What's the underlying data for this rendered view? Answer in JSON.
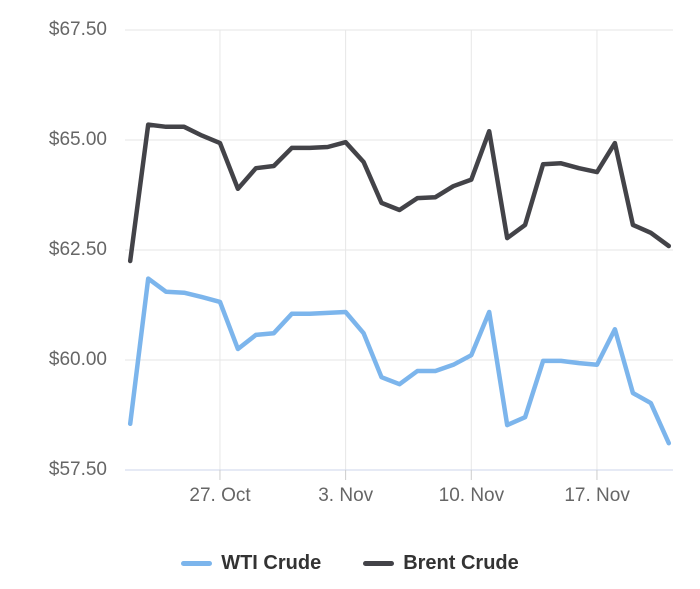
{
  "chart_data": {
    "type": "line",
    "title": "",
    "xlabel": "",
    "ylabel": "",
    "ylim": [
      57.5,
      67.5
    ],
    "grid": true,
    "legend_position": "bottom",
    "y_ticks": [
      "$67.50",
      "$65.00",
      "$62.50",
      "$60.00",
      "$57.50"
    ],
    "y_tick_values": [
      67.5,
      65.0,
      62.5,
      60.0,
      57.5
    ],
    "x_ticks": [
      "27. Oct",
      "3. Nov",
      "10. Nov",
      "17. Nov"
    ],
    "x_tick_indices": [
      5,
      12,
      19,
      26
    ],
    "x": [
      "Oct 22",
      "Oct 23",
      "Oct 24",
      "Oct 25",
      "Oct 26",
      "Oct 27",
      "Oct 28",
      "Oct 29",
      "Oct 30",
      "Oct 31",
      "Nov 1",
      "Nov 2",
      "Nov 3",
      "Nov 4",
      "Nov 5",
      "Nov 6",
      "Nov 7",
      "Nov 8",
      "Nov 9",
      "Nov 10",
      "Nov 11",
      "Nov 12",
      "Nov 13",
      "Nov 14",
      "Nov 15",
      "Nov 16",
      "Nov 17",
      "Nov 18",
      "Nov 19",
      "Nov 20",
      "Nov 21"
    ],
    "series": [
      {
        "name": "WTI Crude",
        "color": "#7cb5ec",
        "values": [
          58.55,
          61.85,
          61.55,
          61.53,
          61.43,
          61.32,
          60.25,
          60.57,
          60.61,
          61.05,
          61.05,
          61.07,
          61.09,
          60.61,
          59.61,
          59.45,
          59.75,
          59.75,
          59.89,
          60.11,
          61.09,
          58.52,
          58.7,
          59.98,
          59.98,
          59.93,
          59.89,
          60.7,
          59.25,
          59.02,
          58.11
        ]
      },
      {
        "name": "Brent Crude",
        "color": "#434348",
        "values": [
          62.25,
          65.35,
          65.3,
          65.3,
          65.1,
          64.93,
          63.89,
          64.36,
          64.41,
          64.82,
          64.82,
          64.84,
          64.95,
          64.5,
          63.57,
          63.41,
          63.68,
          63.7,
          63.95,
          64.1,
          65.2,
          62.77,
          63.07,
          64.45,
          64.47,
          64.36,
          64.27,
          64.93,
          63.07,
          62.89,
          62.59
        ]
      }
    ]
  },
  "legend": {
    "items": [
      {
        "label": "WTI Crude",
        "color": "#7cb5ec"
      },
      {
        "label": "Brent Crude",
        "color": "#434348"
      }
    ]
  },
  "colors": {
    "background": "#ffffff",
    "gridline": "#e6e6e6",
    "axis_line": "#ccd6eb",
    "tick_mark": "#cccccc",
    "axis_label": "#666666",
    "legend_text": "#333333"
  }
}
